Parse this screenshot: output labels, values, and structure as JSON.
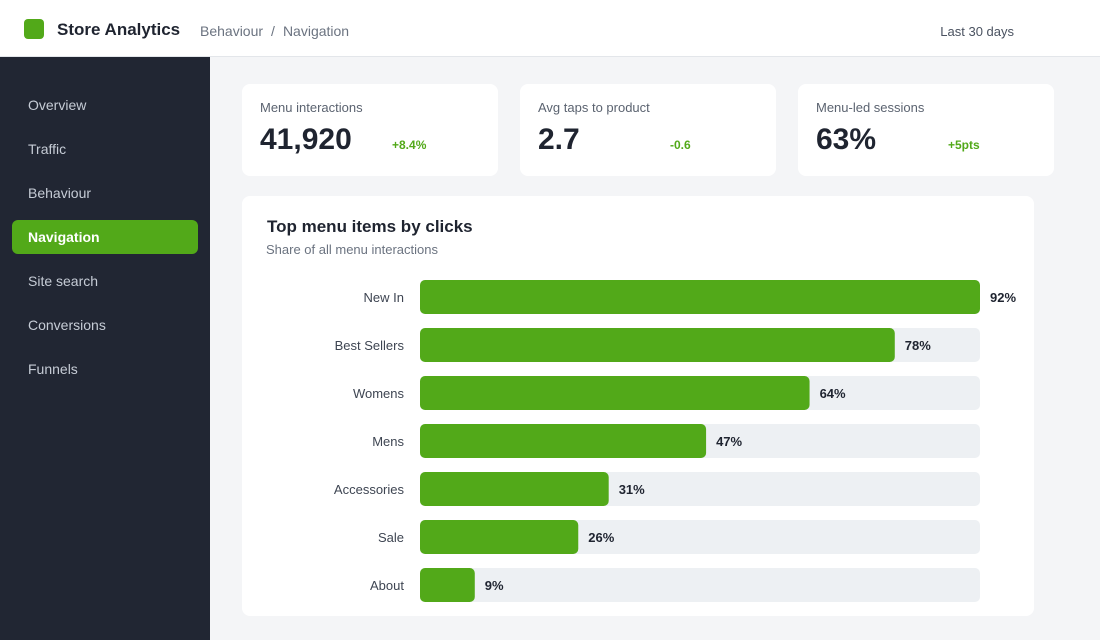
{
  "header": {
    "app_title": "Store Analytics",
    "breadcrumb": [
      "Behaviour",
      "/",
      "Navigation"
    ],
    "date_range": "Last 30 days"
  },
  "colors": {
    "accent": "#52a919",
    "sidebar_bg": "#212633",
    "track": "#edf0f3",
    "delta_positive": "#52a919"
  },
  "sidebar": {
    "items": [
      {
        "label": "Overview",
        "active": false
      },
      {
        "label": "Traffic",
        "active": false
      },
      {
        "label": "Behaviour",
        "active": false
      },
      {
        "label": "Navigation",
        "active": true
      },
      {
        "label": "Site search",
        "active": false
      },
      {
        "label": "Conversions",
        "active": false
      },
      {
        "label": "Funnels",
        "active": false
      }
    ]
  },
  "kpis": [
    {
      "label": "Menu interactions",
      "value": "41,920",
      "delta": "+8.4%"
    },
    {
      "label": "Avg taps to product",
      "value": "2.7",
      "delta": "-0.6"
    },
    {
      "label": "Menu-led sessions",
      "value": "63%",
      "delta": "+5pts"
    }
  ],
  "chart": {
    "title": "Top menu items by clicks",
    "subtitle": "Share of all menu interactions"
  },
  "chart_data": {
    "type": "bar",
    "orientation": "horizontal",
    "title": "Top menu items by clicks",
    "subtitle": "Share of all menu interactions",
    "categories": [
      "New In",
      "Best Sellers",
      "Womens",
      "Mens",
      "Accessories",
      "Sale",
      "About"
    ],
    "values": [
      92,
      78,
      64,
      47,
      31,
      26,
      9
    ],
    "value_labels": [
      "92%",
      "78%",
      "64%",
      "47%",
      "31%",
      "26%",
      "9%"
    ],
    "xlim": [
      0,
      92
    ],
    "grid": false,
    "legend": "none"
  }
}
